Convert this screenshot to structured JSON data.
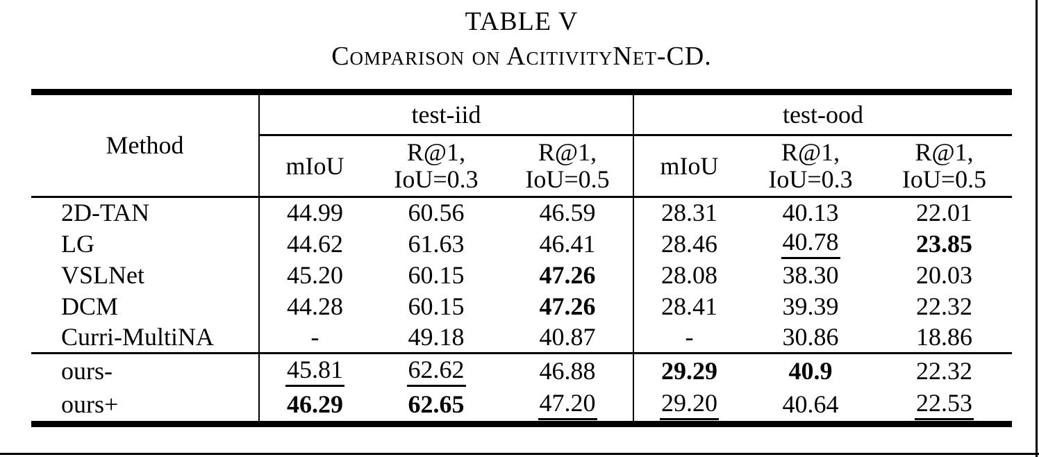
{
  "caption": {
    "label": "TABLE V",
    "title": "Comparison on AcitivityNet-CD."
  },
  "table": {
    "method_header": "Method",
    "groups": [
      {
        "label": "test-iid",
        "columns": [
          "mIoU",
          "R@1,\nIoU=0.3",
          "R@1,\nIoU=0.5"
        ]
      },
      {
        "label": "test-ood",
        "columns": [
          "mIoU",
          "R@1,\nIoU=0.3",
          "R@1,\nIoU=0.5"
        ]
      }
    ],
    "rows": [
      {
        "method": "2D-TAN",
        "method_bold": false,
        "group": "main",
        "rule_above": false,
        "values": [
          {
            "text": "44.99",
            "style": "plain"
          },
          {
            "text": "60.56",
            "style": "plain"
          },
          {
            "text": "46.59",
            "style": "plain"
          },
          {
            "text": "28.31",
            "style": "plain"
          },
          {
            "text": "40.13",
            "style": "plain"
          },
          {
            "text": "22.01",
            "style": "plain"
          }
        ]
      },
      {
        "method": "LG",
        "method_bold": false,
        "group": "main",
        "rule_above": false,
        "values": [
          {
            "text": "44.62",
            "style": "plain"
          },
          {
            "text": "61.63",
            "style": "plain"
          },
          {
            "text": "46.41",
            "style": "plain"
          },
          {
            "text": "28.46",
            "style": "plain"
          },
          {
            "text": "40.78",
            "style": "underline"
          },
          {
            "text": "23.85",
            "style": "bold"
          }
        ]
      },
      {
        "method": "VSLNet",
        "method_bold": false,
        "group": "main",
        "rule_above": false,
        "values": [
          {
            "text": "45.20",
            "style": "plain"
          },
          {
            "text": "60.15",
            "style": "plain"
          },
          {
            "text": "47.26",
            "style": "bold"
          },
          {
            "text": "28.08",
            "style": "plain"
          },
          {
            "text": "38.30",
            "style": "plain"
          },
          {
            "text": "20.03",
            "style": "plain"
          }
        ]
      },
      {
        "method": "DCM",
        "method_bold": false,
        "group": "main",
        "rule_above": false,
        "values": [
          {
            "text": "44.28",
            "style": "plain"
          },
          {
            "text": "60.15",
            "style": "plain"
          },
          {
            "text": "47.26",
            "style": "bold"
          },
          {
            "text": "28.41",
            "style": "plain"
          },
          {
            "text": "39.39",
            "style": "plain"
          },
          {
            "text": "22.32",
            "style": "plain"
          }
        ]
      },
      {
        "method": "Curri-MultiNA",
        "method_bold": false,
        "group": "main",
        "rule_above": false,
        "values": [
          {
            "text": "-",
            "style": "plain"
          },
          {
            "text": "49.18",
            "style": "plain"
          },
          {
            "text": "40.87",
            "style": "plain"
          },
          {
            "text": "-",
            "style": "plain"
          },
          {
            "text": "30.86",
            "style": "plain"
          },
          {
            "text": "18.86",
            "style": "plain"
          }
        ]
      },
      {
        "method": "ours-",
        "method_bold": true,
        "group": "ours",
        "rule_above": true,
        "values": [
          {
            "text": "45.81",
            "style": "underline"
          },
          {
            "text": "62.62",
            "style": "underline"
          },
          {
            "text": "46.88",
            "style": "plain"
          },
          {
            "text": "29.29",
            "style": "bold"
          },
          {
            "text": "40.9",
            "style": "bold"
          },
          {
            "text": "22.32",
            "style": "plain"
          }
        ]
      },
      {
        "method": "ours+",
        "method_bold": true,
        "group": "ours",
        "rule_above": false,
        "values": [
          {
            "text": "46.29",
            "style": "bold"
          },
          {
            "text": "62.65",
            "style": "bold"
          },
          {
            "text": "47.20",
            "style": "underline"
          },
          {
            "text": "29.20",
            "style": "underline"
          },
          {
            "text": "40.64",
            "style": "plain"
          },
          {
            "text": "22.53",
            "style": "underline"
          }
        ]
      }
    ]
  }
}
